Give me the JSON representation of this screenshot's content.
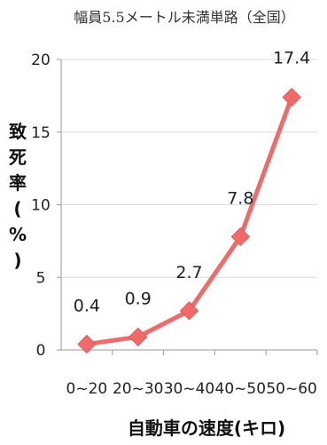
{
  "chart_data": {
    "type": "line",
    "title": "幅員5.5メートル未満単路（全国）",
    "categories": [
      "0~20",
      "20~30",
      "30~40",
      "40~50",
      "50~60"
    ],
    "series": [
      {
        "values": [
          0.4,
          0.9,
          2.7,
          7.8,
          17.4
        ]
      }
    ],
    "data_labels": [
      "0.4",
      "0.9",
      "2.7",
      "7.8",
      "17.4"
    ],
    "xlabel": "自動車の速度(キロ)",
    "ylabel": "致死率(%)",
    "ylim": [
      0,
      20
    ],
    "yticks": [
      0,
      5,
      10,
      15,
      20
    ],
    "grid": true,
    "colors": {
      "line": "#f06a6a",
      "marker": "#f06a6a",
      "grid": "#d9d9d9",
      "axis": "#9a9a9a"
    }
  }
}
